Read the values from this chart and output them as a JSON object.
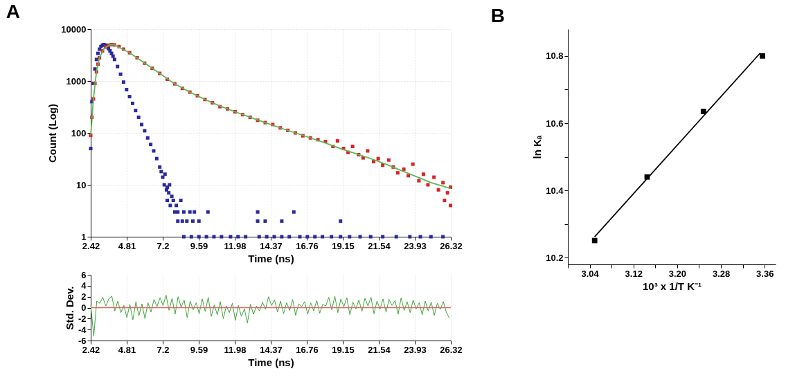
{
  "chart_data": [
    {
      "type": "scatter",
      "title": "A",
      "xlabel": "Time (ns)",
      "ylabel": "Count (Log)",
      "log": "y",
      "grid": true,
      "marker": "square",
      "xlim": [
        2.42,
        26.32
      ],
      "xticks": [
        2.42,
        4.81,
        7.2,
        9.59,
        11.98,
        14.37,
        16.76,
        19.15,
        21.54,
        23.93,
        26.32
      ],
      "ylim": [
        1,
        10000
      ],
      "yticks": [
        1,
        10,
        100,
        1000,
        10000
      ],
      "series": [
        {
          "color": "#2a2aa0",
          "x": [
            2.42,
            2.5,
            2.6,
            2.7,
            2.8,
            2.9,
            3.0,
            3.1,
            3.2,
            3.3,
            3.4,
            3.5,
            3.6,
            3.7,
            3.8,
            3.9,
            4.0,
            4.2,
            4.4,
            4.6,
            4.8,
            5.0,
            5.2,
            5.4,
            5.6,
            5.8,
            6.0,
            6.2,
            6.4,
            6.6,
            6.8,
            7.0,
            7.1,
            7.2,
            7.3,
            7.35,
            7.45,
            7.5,
            7.6,
            7.65,
            7.5,
            7.8,
            7.9,
            8.1,
            8.4,
            7.7,
            8.0,
            8.2,
            8.6,
            9.0,
            9.3,
            10.2,
            13.5,
            15.9,
            8.2,
            8.5,
            8.8,
            9.2,
            9.6,
            13.5,
            14.0,
            15.1,
            19.0,
            8.6,
            9.1,
            9.6,
            10.1,
            10.6,
            11.1,
            11.7,
            12.2,
            12.7,
            13.6,
            14.1,
            14.6,
            15.1,
            15.6,
            16.3,
            16.8,
            17.3,
            17.8,
            18.4,
            19.0,
            19.6,
            20.3,
            21.0,
            21.8,
            22.7,
            23.6,
            24.3,
            25.0,
            25.8
          ],
          "values": [
            50,
            400,
            900,
            1700,
            2600,
            3400,
            4100,
            4600,
            4900,
            5000,
            4900,
            4600,
            4200,
            3800,
            3400,
            3000,
            2600,
            1900,
            1350,
            950,
            680,
            500,
            370,
            270,
            200,
            145,
            110,
            80,
            60,
            45,
            32,
            22,
            18,
            14,
            10,
            16,
            8,
            9,
            7,
            10,
            5,
            6,
            5,
            4,
            5,
            4,
            3,
            3,
            3,
            3,
            3,
            3,
            3,
            3,
            2,
            2,
            2,
            2,
            2,
            2,
            2,
            2,
            2,
            1,
            1,
            1,
            1,
            1,
            1,
            1,
            1,
            1,
            1,
            1,
            1,
            1,
            1,
            1,
            1,
            1,
            1,
            1,
            1,
            1,
            1,
            1,
            1,
            1,
            1,
            1,
            1,
            1
          ]
        },
        {
          "color": "#e02020",
          "x": [
            2.42,
            2.5,
            2.6,
            2.7,
            2.8,
            2.9,
            3.0,
            3.2,
            3.4,
            3.6,
            3.8,
            4.0,
            4.3,
            4.6,
            5.0,
            5.5,
            6.0,
            6.5,
            7.0,
            7.5,
            8.0,
            8.5,
            9.0,
            9.5,
            10.0,
            10.5,
            11.0,
            11.5,
            12.0,
            12.5,
            13.0,
            13.5,
            14.0,
            14.5,
            15.0,
            15.5,
            16.0,
            16.5,
            17.0,
            17.5,
            18.0,
            18.5,
            18.8,
            19.2,
            19.5,
            19.8,
            20.2,
            20.5,
            20.8,
            21.2,
            21.5,
            21.8,
            22.2,
            22.5,
            22.8,
            23.2,
            23.5,
            23.8,
            24.2,
            24.5,
            24.8,
            25.2,
            25.5,
            25.8,
            26.1,
            26.3,
            25.9,
            26.3
          ],
          "values": [
            90,
            200,
            450,
            900,
            1500,
            2100,
            2800,
            3800,
            4500,
            4900,
            5000,
            4950,
            4600,
            4100,
            3500,
            2800,
            2200,
            1750,
            1400,
            1080,
            880,
            720,
            610,
            520,
            440,
            380,
            320,
            290,
            255,
            225,
            200,
            175,
            158,
            145,
            125,
            112,
            100,
            88,
            80,
            74,
            68,
            55,
            70,
            50,
            42,
            55,
            38,
            33,
            45,
            28,
            32,
            24,
            30,
            22,
            17,
            20,
            15,
            25,
            12,
            16,
            10,
            14,
            8,
            11,
            7,
            9,
            5,
            4
          ]
        },
        {
          "type": "line",
          "marker": "none",
          "color": "#5cb85c",
          "x": [
            2.42,
            2.6,
            2.8,
            3.0,
            3.3,
            3.7,
            4.0,
            5.0,
            6.0,
            7.0,
            8.0,
            9.0,
            10.0,
            11.0,
            12.0,
            13.0,
            14.0,
            15.0,
            16.0,
            17.0,
            18.0,
            19.0,
            20.0,
            21.0,
            22.0,
            23.0,
            24.0,
            25.0,
            26.32
          ],
          "values": [
            90,
            450,
            1500,
            2800,
            4200,
            5000,
            4950,
            3500,
            2200,
            1400,
            880,
            610,
            440,
            330,
            255,
            200,
            158,
            125,
            100,
            80,
            64,
            50,
            40,
            32,
            25,
            19,
            14.5,
            11,
            8.5
          ]
        }
      ]
    },
    {
      "type": "line",
      "xlabel": "Time (ns)",
      "ylabel": "Std. Dev.",
      "grid": "x",
      "xlim": [
        2.42,
        26.32
      ],
      "xticks": [
        2.42,
        4.81,
        7.2,
        9.59,
        11.98,
        14.37,
        16.76,
        19.15,
        21.54,
        23.93,
        26.32
      ],
      "ylim": [
        -6,
        6
      ],
      "yticks": [
        -6,
        -4,
        -2,
        0,
        2,
        4,
        6
      ],
      "ref_lines": [
        {
          "axis": "y",
          "value": 0,
          "color": "#e06060"
        }
      ],
      "x": [
        2.42,
        2.62,
        2.82,
        3.02,
        3.22,
        3.42,
        3.62,
        3.82,
        4.02,
        4.22,
        4.42,
        4.62,
        4.82,
        5.02,
        5.22,
        5.42,
        5.62,
        5.82,
        6.02,
        6.22,
        6.42,
        6.62,
        6.82,
        7.02,
        7.22,
        7.42,
        7.62,
        7.82,
        8.02,
        8.22,
        8.42,
        8.62,
        8.82,
        9.02,
        9.22,
        9.42,
        9.62,
        9.82,
        10.02,
        10.22,
        10.42,
        10.62,
        10.82,
        11.02,
        11.22,
        11.42,
        11.62,
        11.82,
        12.02,
        12.22,
        12.42,
        12.62,
        12.82,
        13.02,
        13.22,
        13.42,
        13.62,
        13.82,
        14.02,
        14.22,
        14.42,
        14.62,
        14.82,
        15.02,
        15.22,
        15.42,
        15.62,
        15.82,
        16.02,
        16.22,
        16.42,
        16.62,
        16.82,
        17.02,
        17.22,
        17.42,
        17.62,
        17.82,
        18.02,
        18.22,
        18.42,
        18.62,
        18.82,
        19.02,
        19.22,
        19.42,
        19.62,
        19.82,
        20.02,
        20.22,
        20.42,
        20.62,
        20.82,
        21.02,
        21.22,
        21.42,
        21.62,
        21.82,
        22.02,
        22.22,
        22.42,
        22.62,
        22.82,
        23.02,
        23.22,
        23.42,
        23.62,
        23.82,
        24.02,
        24.22,
        24.42,
        24.62,
        24.82,
        25.02,
        25.22,
        25.42,
        25.62,
        25.82,
        26.02,
        26.22
      ],
      "series": [
        {
          "color": "#3aa83a",
          "values": [
            0.5,
            -5.2,
            1.2,
            0.8,
            1.9,
            0.3,
            1.6,
            2.1,
            -0.6,
            1.2,
            -0.9,
            0.4,
            -1.8,
            0.6,
            -2.2,
            1.1,
            -1.5,
            0.7,
            -2.0,
            0.9,
            -0.8,
            1.5,
            0.2,
            1.8,
            0.4,
            2.3,
            -0.5,
            1.7,
            -1.2,
            2.0,
            0.1,
            1.4,
            -1.8,
            1.2,
            -0.4,
            0.9,
            -1.1,
            1.6,
            -0.7,
            1.9,
            -1.6,
            0.5,
            -1.3,
            1.1,
            -2.0,
            0.3,
            -0.9,
            0.8,
            -2.3,
            0.4,
            -1.6,
            -0.2,
            -2.8,
            0.6,
            -1.2,
            0.3,
            -0.6,
            1.0,
            -0.3,
            2.0,
            0.4,
            1.4,
            -0.8,
            1.2,
            -1.1,
            0.9,
            -0.5,
            1.5,
            -1.4,
            0.7,
            0.2,
            1.1,
            -1.2,
            0.9,
            -0.6,
            1.3,
            -1.0,
            0.6,
            0.3,
            1.9,
            -0.4,
            2.1,
            -0.9,
            1.6,
            0.2,
            1.8,
            -1.3,
            1.0,
            -0.2,
            1.4,
            -0.7,
            1.7,
            0.3,
            1.9,
            -1.1,
            1.2,
            -0.3,
            1.6,
            -0.8,
            1.5,
            0.4,
            1.3,
            -1.2,
            1.8,
            -0.5,
            1.1,
            -0.9,
            1.4,
            -0.2,
            0.9,
            -1.3,
            1.2,
            -0.6,
            1.0,
            -1.4,
            0.8,
            -0.3,
            1.1,
            -0.8,
            -1.9
          ]
        }
      ]
    },
    {
      "type": "scatter",
      "title": "B",
      "xlabel": "10³ x 1/T K⁻¹",
      "ylabel": "ln Kₐ",
      "marker": "square",
      "xlim": [
        3.0,
        3.38
      ],
      "xticks": [
        {
          "value": 3.0,
          "label": null
        },
        3.04,
        {
          "value": 3.08,
          "label": null
        },
        3.12,
        {
          "value": 3.16,
          "label": null
        },
        {
          "value": 3.2,
          "label": "3.20"
        },
        {
          "value": 3.24,
          "label": null
        },
        3.28,
        {
          "value": 3.32,
          "label": null
        },
        3.36
      ],
      "ylim": [
        10.18,
        10.88
      ],
      "yticks": [
        10.2,
        {
          "value": 10.3,
          "label": null
        },
        10.4,
        {
          "value": 10.5,
          "label": null
        },
        10.6,
        {
          "value": 10.7,
          "label": null
        },
        10.8
      ],
      "series": [
        {
          "color": "#000000",
          "x": [
            3.049,
            3.145,
            3.248,
            3.356
          ],
          "values": [
            10.251,
            10.44,
            10.635,
            10.8
          ]
        },
        {
          "type": "line",
          "marker": "none",
          "color": "#000000",
          "x": [
            3.049,
            3.352
          ],
          "values": [
            10.262,
            10.809
          ]
        }
      ]
    }
  ]
}
